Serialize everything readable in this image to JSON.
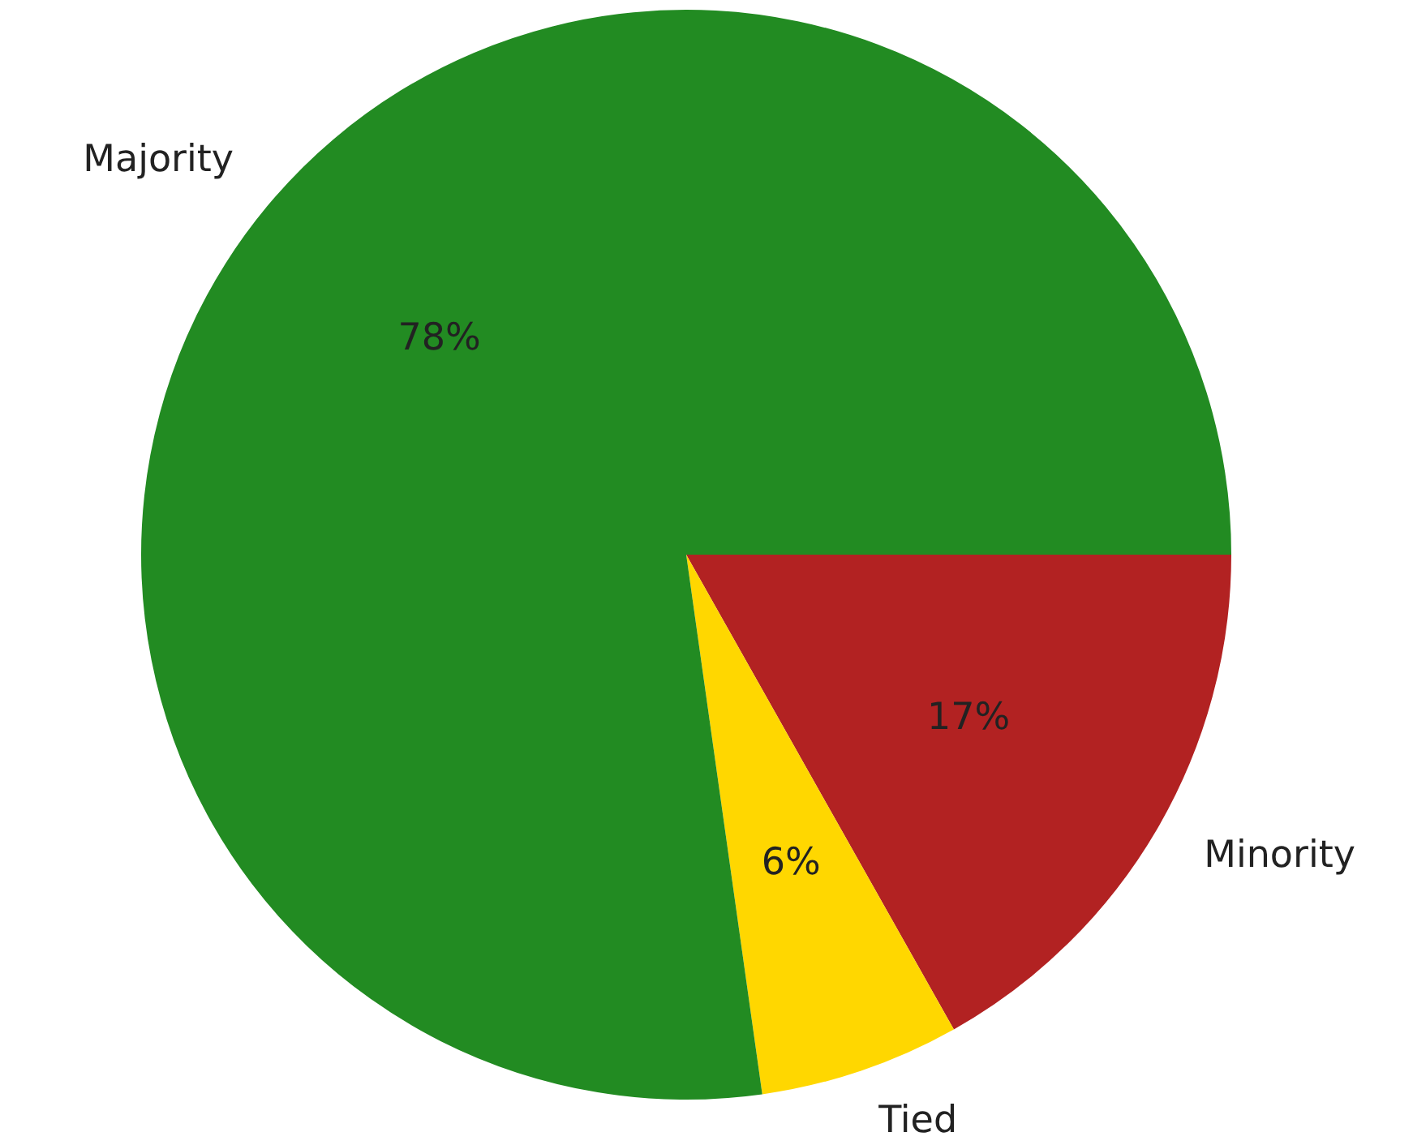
{
  "chart_data": {
    "type": "pie",
    "categories": [
      "Majority",
      "Tied",
      "Minority"
    ],
    "values": [
      78,
      6,
      17
    ],
    "colors": [
      "#228b22",
      "#ffd700",
      "#b22222"
    ],
    "value_labels": [
      "78%",
      "6%",
      "17%"
    ],
    "legend": false
  }
}
